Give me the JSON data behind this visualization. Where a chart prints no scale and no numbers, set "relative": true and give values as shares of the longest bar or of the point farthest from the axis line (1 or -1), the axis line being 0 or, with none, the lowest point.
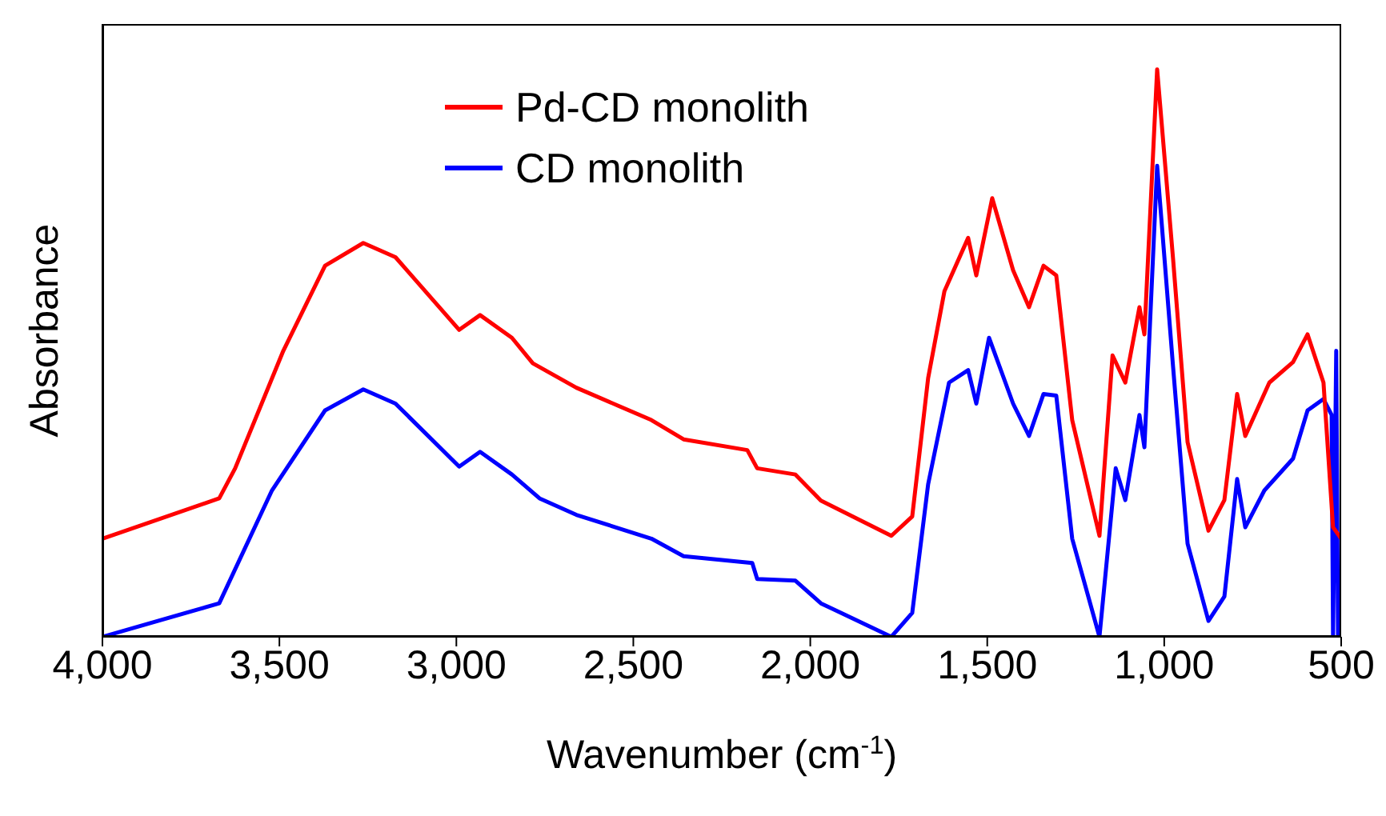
{
  "chart_data": {
    "type": "line",
    "xlabel": "Wavenumber (cm$^{-1}$)",
    "ylabel": "Absorbance",
    "relative": true,
    "legend": "top",
    "grid": false,
    "marker": "none",
    "line_style": "solid",
    "xlim": [
      4000,
      500
    ],
    "xticks": [
      {
        "value": 4000,
        "label": "4,000"
      },
      {
        "value": 3500,
        "label": "3,500"
      },
      {
        "value": 3000,
        "label": "3,000"
      },
      {
        "value": 2500,
        "label": "2,500"
      },
      {
        "value": 2000,
        "label": "2,000"
      },
      {
        "value": 1500,
        "label": "1,500"
      },
      {
        "value": 1000,
        "label": "1,000"
      },
      {
        "value": 500,
        "label": "500"
      }
    ],
    "series": [
      {
        "name": "Pd-CD monolith",
        "color": "#ff0000",
        "x": [
          4000,
          3670,
          3625,
          3489,
          3371,
          3263,
          3172,
          2992,
          2933,
          2843,
          2784,
          2661,
          2449,
          2358,
          2178,
          2150,
          2042,
          1970,
          1771,
          1712,
          1667,
          1621,
          1554,
          1531,
          1486,
          1427,
          1382,
          1341,
          1305,
          1260,
          1183,
          1146,
          1110,
          1070,
          1056,
          1020,
          975,
          934,
          875,
          830,
          794,
          771,
          703,
          636,
          595,
          550,
          523,
          500
        ],
        "values": [
          0.173,
          0.244,
          0.297,
          0.504,
          0.654,
          0.694,
          0.669,
          0.541,
          0.567,
          0.527,
          0.482,
          0.439,
          0.382,
          0.348,
          0.329,
          0.297,
          0.286,
          0.24,
          0.178,
          0.212,
          0.456,
          0.609,
          0.703,
          0.637,
          0.773,
          0.646,
          0.581,
          0.654,
          0.637,
          0.382,
          0.178,
          0.496,
          0.448,
          0.581,
          0.533,
          1.0,
          0.666,
          0.343,
          0.187,
          0.241,
          0.428,
          0.354,
          0.448,
          0.484,
          0.533,
          0.448,
          0.193,
          0.173
        ]
      },
      {
        "name": "CD monolith",
        "color": "#0000ff",
        "x": [
          4000,
          3670,
          3521,
          3371,
          3263,
          3172,
          2992,
          2933,
          2843,
          2765,
          2661,
          2449,
          2358,
          2164,
          2150,
          2042,
          1970,
          1771,
          1712,
          1667,
          1608,
          1554,
          1531,
          1495,
          1427,
          1382,
          1341,
          1305,
          1260,
          1183,
          1137,
          1110,
          1070,
          1056,
          1020,
          975,
          934,
          875,
          830,
          794,
          771,
          717,
          636,
          595,
          550,
          527,
          523,
          514,
          509
        ],
        "values": [
          0,
          0.059,
          0.258,
          0.399,
          0.436,
          0.411,
          0.3,
          0.326,
          0.286,
          0.244,
          0.215,
          0.173,
          0.142,
          0.13,
          0.102,
          0.099,
          0.059,
          0,
          0.042,
          0.269,
          0.448,
          0.47,
          0.411,
          0.527,
          0.411,
          0.354,
          0.428,
          0.425,
          0.173,
          0,
          0.297,
          0.241,
          0.391,
          0.334,
          0.83,
          0.476,
          0.164,
          0.028,
          0.071,
          0.278,
          0.193,
          0.258,
          0.314,
          0.399,
          0.419,
          0.391,
          0,
          0.504,
          0
        ]
      }
    ]
  }
}
